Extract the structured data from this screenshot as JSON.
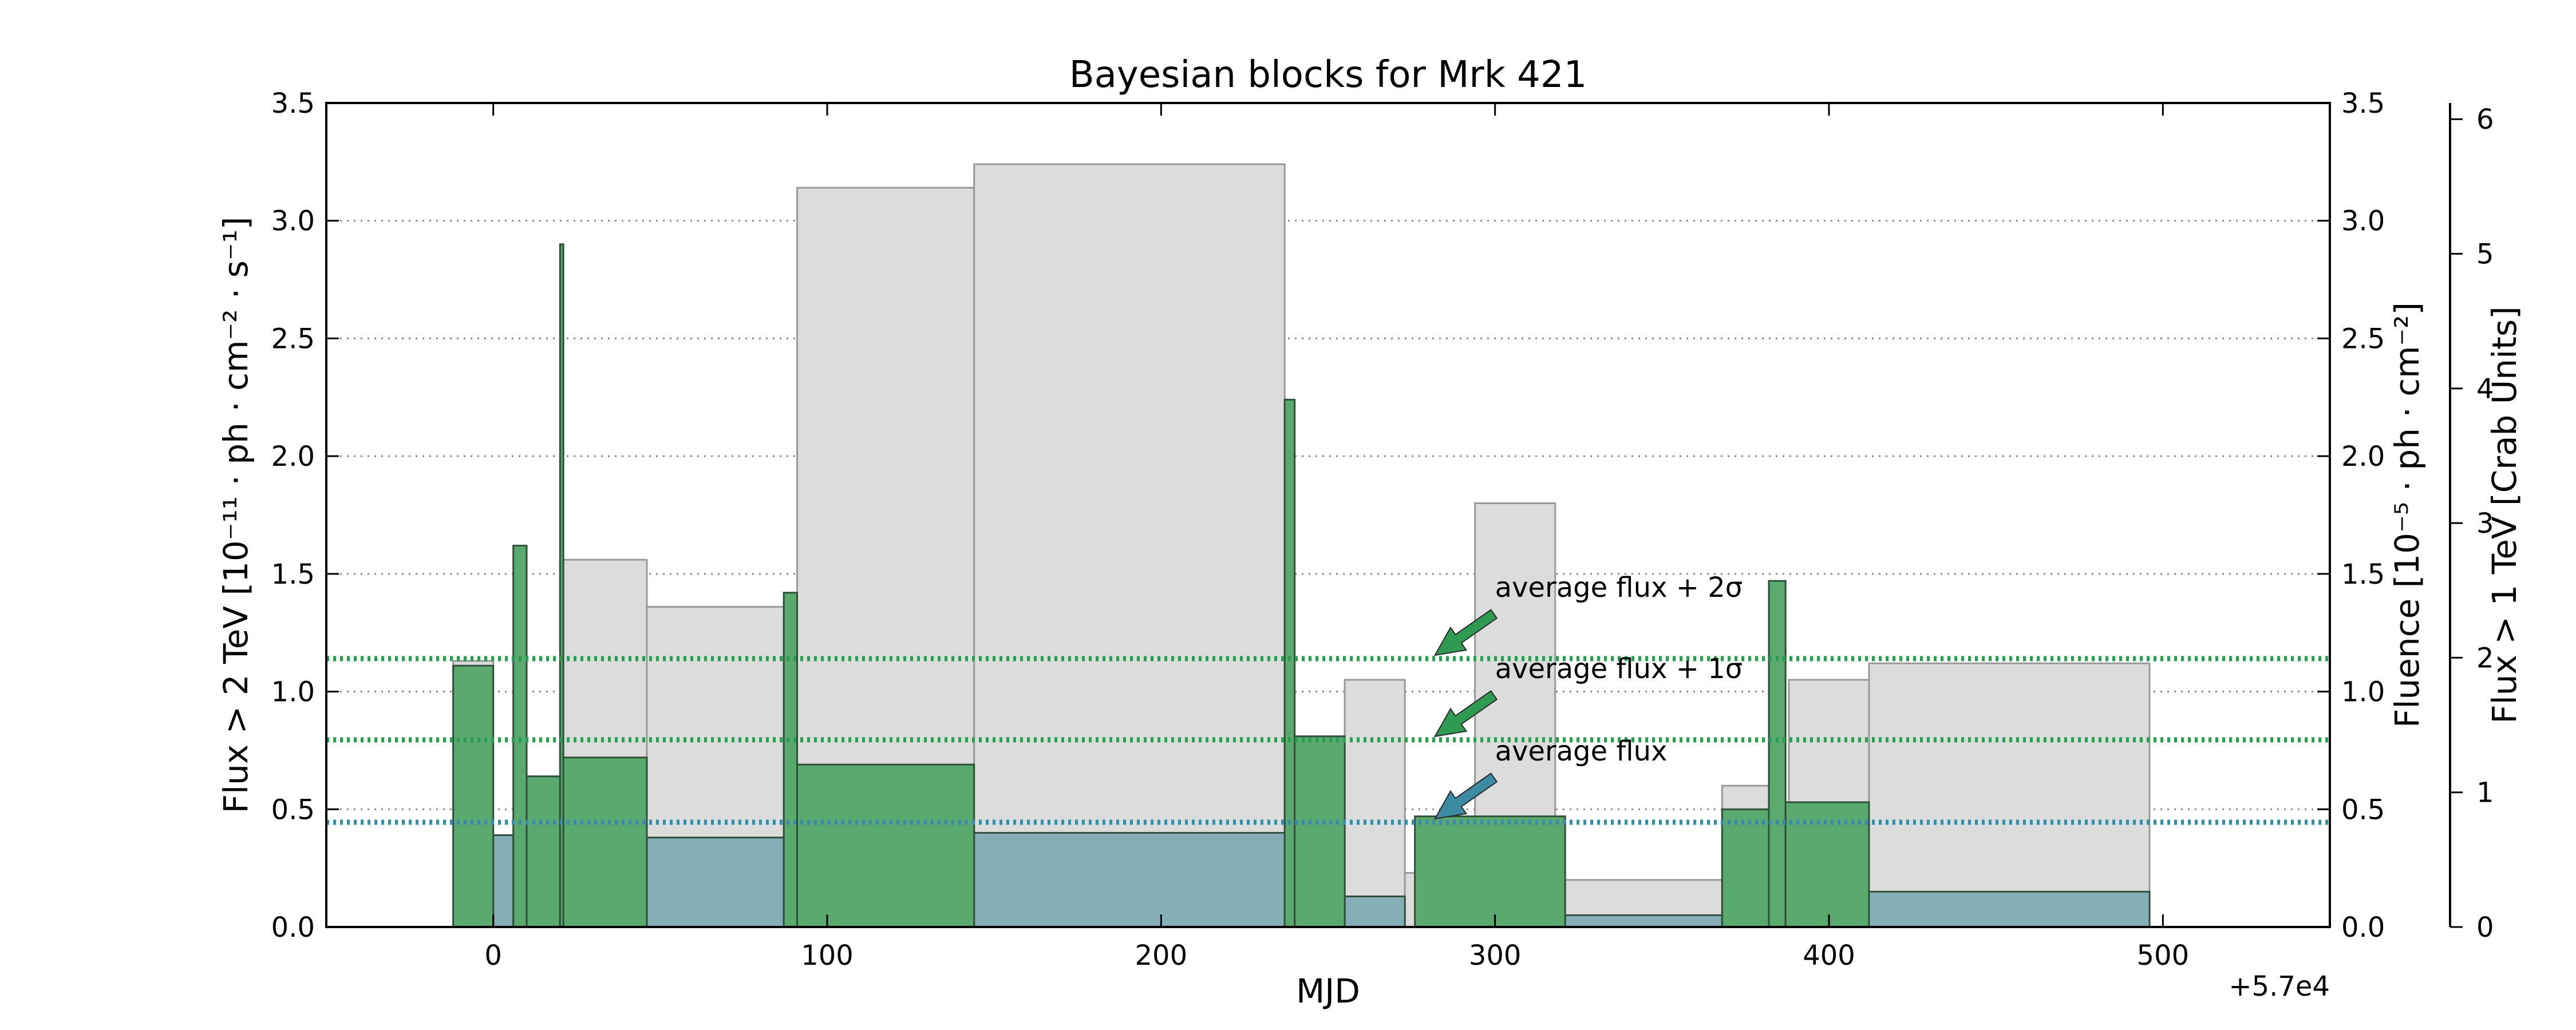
{
  "chart_data": {
    "type": "bar",
    "title": "Bayesian blocks for Mrk 421",
    "xlabel": "MJD",
    "x_offset_label": "+5.7e4",
    "ylabel_left": "Flux > 2 TeV [10⁻¹¹ · ph · cm⁻² · s⁻¹]",
    "ylabel_right": "Fluence [10⁻⁵ · ph · cm⁻²]",
    "ylabel_far_right": "Flux > 1 TeV [Crab Units]",
    "xlim": [
      -50,
      550
    ],
    "ylim": [
      0,
      3.5
    ],
    "ylim_far_right": [
      0,
      6.12
    ],
    "grid": "horizontal dotted",
    "x_ticks": [
      0,
      100,
      200,
      300,
      400,
      500
    ],
    "x_tick_labels": [
      "0",
      "100",
      "200",
      "300",
      "400",
      "500"
    ],
    "y_ticks": [
      0.0,
      0.5,
      1.0,
      1.5,
      2.0,
      2.5,
      3.0,
      3.5
    ],
    "y_tick_labels": [
      "0.0",
      "0.5",
      "1.0",
      "1.5",
      "2.0",
      "2.5",
      "3.0",
      "3.5"
    ],
    "y_ticks_far_right": [
      0,
      1,
      2,
      3,
      4,
      5,
      6
    ],
    "y_tick_labels_far_right": [
      "0",
      "1",
      "2",
      "3",
      "4",
      "5",
      "6"
    ],
    "series": [
      {
        "role": "fluence",
        "color": "#dcdcdc",
        "blocks": [
          {
            "x0": -12,
            "x1": 0,
            "value": 1.13
          },
          {
            "x0": 20,
            "x1": 46,
            "value": 1.56
          },
          {
            "x0": 46,
            "x1": 87,
            "value": 1.36
          },
          {
            "x0": 91,
            "x1": 144,
            "value": 3.14
          },
          {
            "x0": 144,
            "x1": 237,
            "value": 3.24
          },
          {
            "x0": 255,
            "x1": 273,
            "value": 1.05
          },
          {
            "x0": 273,
            "x1": 294,
            "value": 0.23
          },
          {
            "x0": 294,
            "x1": 318,
            "value": 1.8
          },
          {
            "x0": 318,
            "x1": 368,
            "value": 0.2
          },
          {
            "x0": 368,
            "x1": 383,
            "value": 0.6
          },
          {
            "x0": 388,
            "x1": 412,
            "value": 1.05
          },
          {
            "x0": 412,
            "x1": 496,
            "value": 1.12
          }
        ]
      },
      {
        "role": "flux_quiet",
        "color": "#86aeb7",
        "blocks": [
          {
            "x0": 0,
            "x1": 6,
            "value": 0.39
          },
          {
            "x0": 46,
            "x1": 87,
            "value": 0.38
          },
          {
            "x0": 144,
            "x1": 237,
            "value": 0.4
          },
          {
            "x0": 255,
            "x1": 273,
            "value": 0.13
          },
          {
            "x0": 318,
            "x1": 368,
            "value": 0.05
          },
          {
            "x0": 412,
            "x1": 496,
            "value": 0.15
          }
        ]
      },
      {
        "role": "flux_flare",
        "color": "#5aaa70",
        "blocks": [
          {
            "x0": -12,
            "x1": 0,
            "value": 1.11
          },
          {
            "x0": 6,
            "x1": 10,
            "value": 1.62
          },
          {
            "x0": 10,
            "x1": 20,
            "value": 0.64
          },
          {
            "x0": 20,
            "x1": 21,
            "value": 2.9
          },
          {
            "x0": 21,
            "x1": 46,
            "value": 0.72
          },
          {
            "x0": 87,
            "x1": 91,
            "value": 1.42
          },
          {
            "x0": 91,
            "x1": 144,
            "value": 0.69
          },
          {
            "x0": 237,
            "x1": 240,
            "value": 2.24
          },
          {
            "x0": 240,
            "x1": 255,
            "value": 0.81
          },
          {
            "x0": 276,
            "x1": 321,
            "value": 0.47
          },
          {
            "x0": 368,
            "x1": 382,
            "value": 0.5
          },
          {
            "x0": 382,
            "x1": 387,
            "value": 1.47
          },
          {
            "x0": 387,
            "x1": 412,
            "value": 0.53
          }
        ]
      }
    ],
    "reference_lines": [
      {
        "label": "average flux + 2σ",
        "value": 1.14,
        "color": "#2e9a52"
      },
      {
        "label": "average flux + 1σ",
        "value": 0.795,
        "color": "#2e9a52"
      },
      {
        "label": "average flux",
        "value": 0.445,
        "color": "#3d8aa3"
      }
    ]
  }
}
